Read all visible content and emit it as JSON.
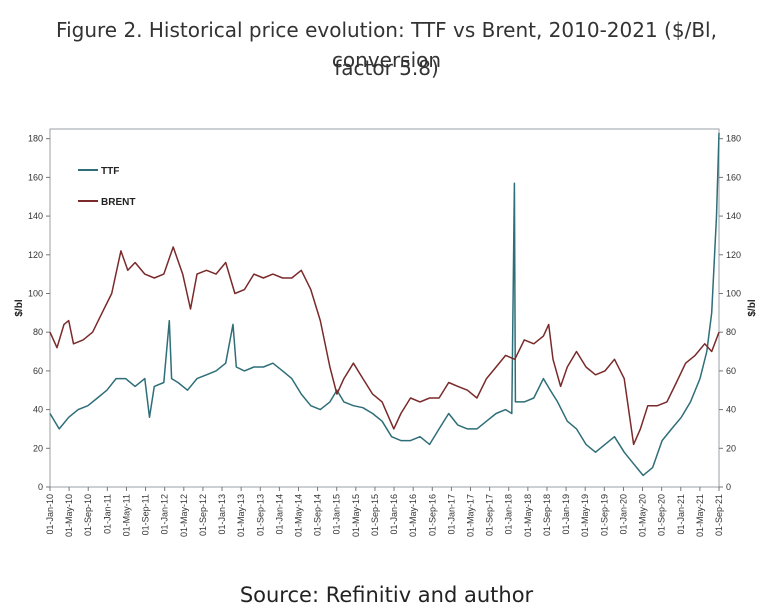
{
  "caption_line1": "Figure 2. Historical price evolution: TTF vs Brent, 2010-2021 ($/Bl, conversion",
  "caption_line2": "factor 5.8)",
  "source": "Source: Refinitiv and author",
  "chart_data": {
    "type": "line",
    "ylabel_left": "$/bl",
    "ylabel_right": "$/bl",
    "ylim": [
      0,
      185
    ],
    "yticks": [
      0,
      20,
      40,
      60,
      80,
      100,
      120,
      140,
      160,
      180
    ],
    "legend_placement": "top-left",
    "grid": false,
    "xticks": [
      "01-Jan-10",
      "01-May-10",
      "01-Sep-10",
      "01-Jan-11",
      "01-May-11",
      "01-Sep-11",
      "01-Jan-12",
      "01-May-12",
      "01-Sep-12",
      "01-Jan-13",
      "01-May-13",
      "01-Sep-13",
      "01-Jan-14",
      "01-May-14",
      "01-Sep-14",
      "01-Jan-15",
      "01-May-15",
      "01-Sep-15",
      "01-Jan-16",
      "01-May-16",
      "01-Sep-16",
      "01-Jan-17",
      "01-May-17",
      "01-Sep-17",
      "01-Jan-18",
      "01-May-18",
      "01-Sep-18",
      "01-Jan-19",
      "01-May-19",
      "01-Sep-19",
      "01-Jan-20",
      "01-May-20",
      "01-Sep-20",
      "01-Jan-21",
      "01-May-21",
      "01-Sep-21"
    ],
    "series": [
      {
        "name": "TTF",
        "color": "#2e6e78",
        "points": [
          [
            "2010-01-01",
            38
          ],
          [
            "2010-03-01",
            30
          ],
          [
            "2010-05-01",
            36
          ],
          [
            "2010-07-01",
            40
          ],
          [
            "2010-09-01",
            42
          ],
          [
            "2010-11-01",
            46
          ],
          [
            "2011-01-01",
            50
          ],
          [
            "2011-03-01",
            56
          ],
          [
            "2011-05-01",
            56
          ],
          [
            "2011-07-01",
            52
          ],
          [
            "2011-09-01",
            56
          ],
          [
            "2011-10-01",
            36
          ],
          [
            "2011-11-01",
            52
          ],
          [
            "2012-01-01",
            54
          ],
          [
            "2012-02-05",
            86
          ],
          [
            "2012-02-20",
            56
          ],
          [
            "2012-04-01",
            54
          ],
          [
            "2012-06-01",
            50
          ],
          [
            "2012-08-01",
            56
          ],
          [
            "2012-10-01",
            58
          ],
          [
            "2012-12-01",
            60
          ],
          [
            "2013-02-01",
            64
          ],
          [
            "2013-03-20",
            84
          ],
          [
            "2013-04-10",
            62
          ],
          [
            "2013-06-01",
            60
          ],
          [
            "2013-08-01",
            62
          ],
          [
            "2013-10-01",
            62
          ],
          [
            "2013-12-01",
            64
          ],
          [
            "2014-02-01",
            60
          ],
          [
            "2014-04-01",
            56
          ],
          [
            "2014-06-01",
            48
          ],
          [
            "2014-08-01",
            42
          ],
          [
            "2014-10-01",
            40
          ],
          [
            "2014-12-01",
            44
          ],
          [
            "2015-01-15",
            50
          ],
          [
            "2015-03-01",
            44
          ],
          [
            "2015-05-01",
            42
          ],
          [
            "2015-07-01",
            41
          ],
          [
            "2015-09-01",
            38
          ],
          [
            "2015-11-01",
            34
          ],
          [
            "2016-01-01",
            26
          ],
          [
            "2016-03-01",
            24
          ],
          [
            "2016-05-01",
            24
          ],
          [
            "2016-07-01",
            26
          ],
          [
            "2016-09-01",
            22
          ],
          [
            "2016-11-01",
            30
          ],
          [
            "2017-01-01",
            38
          ],
          [
            "2017-03-01",
            32
          ],
          [
            "2017-05-01",
            30
          ],
          [
            "2017-07-01",
            30
          ],
          [
            "2017-09-01",
            34
          ],
          [
            "2017-11-01",
            38
          ],
          [
            "2018-01-01",
            40
          ],
          [
            "2018-02-10",
            38
          ],
          [
            "2018-02-27",
            157
          ],
          [
            "2018-03-05",
            44
          ],
          [
            "2018-05-01",
            44
          ],
          [
            "2018-07-01",
            46
          ],
          [
            "2018-09-01",
            56
          ],
          [
            "2018-10-15",
            50
          ],
          [
            "2018-12-01",
            44
          ],
          [
            "2019-02-01",
            34
          ],
          [
            "2019-04-01",
            30
          ],
          [
            "2019-06-01",
            22
          ],
          [
            "2019-08-01",
            18
          ],
          [
            "2019-10-01",
            22
          ],
          [
            "2019-12-01",
            26
          ],
          [
            "2020-02-01",
            18
          ],
          [
            "2020-04-01",
            12
          ],
          [
            "2020-06-01",
            6
          ],
          [
            "2020-08-01",
            10
          ],
          [
            "2020-10-01",
            24
          ],
          [
            "2020-12-01",
            30
          ],
          [
            "2021-02-01",
            36
          ],
          [
            "2021-04-01",
            44
          ],
          [
            "2021-06-01",
            56
          ],
          [
            "2021-07-15",
            70
          ],
          [
            "2021-08-15",
            90
          ],
          [
            "2021-09-15",
            140
          ],
          [
            "2021-10-01",
            183
          ]
        ]
      },
      {
        "name": "BRENT",
        "color": "#7a2a2a",
        "points": [
          [
            "2010-01-01",
            80
          ],
          [
            "2010-02-15",
            72
          ],
          [
            "2010-04-01",
            84
          ],
          [
            "2010-05-01",
            86
          ],
          [
            "2010-06-01",
            74
          ],
          [
            "2010-08-01",
            76
          ],
          [
            "2010-10-01",
            80
          ],
          [
            "2010-12-01",
            90
          ],
          [
            "2011-02-01",
            100
          ],
          [
            "2011-04-01",
            122
          ],
          [
            "2011-05-15",
            112
          ],
          [
            "2011-07-01",
            116
          ],
          [
            "2011-09-01",
            110
          ],
          [
            "2011-11-01",
            108
          ],
          [
            "2012-01-01",
            110
          ],
          [
            "2012-03-01",
            124
          ],
          [
            "2012-05-01",
            110
          ],
          [
            "2012-06-20",
            92
          ],
          [
            "2012-08-01",
            110
          ],
          [
            "2012-10-01",
            112
          ],
          [
            "2012-12-01",
            110
          ],
          [
            "2013-02-01",
            116
          ],
          [
            "2013-04-01",
            100
          ],
          [
            "2013-06-01",
            102
          ],
          [
            "2013-08-01",
            110
          ],
          [
            "2013-10-01",
            108
          ],
          [
            "2013-12-01",
            110
          ],
          [
            "2014-02-01",
            108
          ],
          [
            "2014-04-01",
            108
          ],
          [
            "2014-06-01",
            112
          ],
          [
            "2014-08-01",
            102
          ],
          [
            "2014-10-01",
            86
          ],
          [
            "2014-12-01",
            62
          ],
          [
            "2015-01-15",
            48
          ],
          [
            "2015-03-01",
            56
          ],
          [
            "2015-05-01",
            64
          ],
          [
            "2015-07-01",
            56
          ],
          [
            "2015-09-01",
            48
          ],
          [
            "2015-11-01",
            44
          ],
          [
            "2016-01-15",
            30
          ],
          [
            "2016-03-01",
            38
          ],
          [
            "2016-05-01",
            46
          ],
          [
            "2016-07-01",
            44
          ],
          [
            "2016-09-01",
            46
          ],
          [
            "2016-11-01",
            46
          ],
          [
            "2017-01-01",
            54
          ],
          [
            "2017-03-01",
            52
          ],
          [
            "2017-05-01",
            50
          ],
          [
            "2017-07-01",
            46
          ],
          [
            "2017-09-01",
            56
          ],
          [
            "2017-11-01",
            62
          ],
          [
            "2018-01-01",
            68
          ],
          [
            "2018-03-01",
            66
          ],
          [
            "2018-05-01",
            76
          ],
          [
            "2018-07-01",
            74
          ],
          [
            "2018-09-01",
            78
          ],
          [
            "2018-10-05",
            84
          ],
          [
            "2018-11-01",
            66
          ],
          [
            "2018-12-20",
            52
          ],
          [
            "2019-02-01",
            62
          ],
          [
            "2019-04-01",
            70
          ],
          [
            "2019-06-01",
            62
          ],
          [
            "2019-08-01",
            58
          ],
          [
            "2019-10-01",
            60
          ],
          [
            "2019-12-01",
            66
          ],
          [
            "2020-02-01",
            56
          ],
          [
            "2020-04-01",
            22
          ],
          [
            "2020-05-15",
            30
          ],
          [
            "2020-07-01",
            42
          ],
          [
            "2020-09-01",
            42
          ],
          [
            "2020-11-01",
            44
          ],
          [
            "2021-01-01",
            54
          ],
          [
            "2021-03-01",
            64
          ],
          [
            "2021-05-01",
            68
          ],
          [
            "2021-07-01",
            74
          ],
          [
            "2021-08-15",
            70
          ],
          [
            "2021-10-01",
            80
          ]
        ]
      }
    ]
  }
}
